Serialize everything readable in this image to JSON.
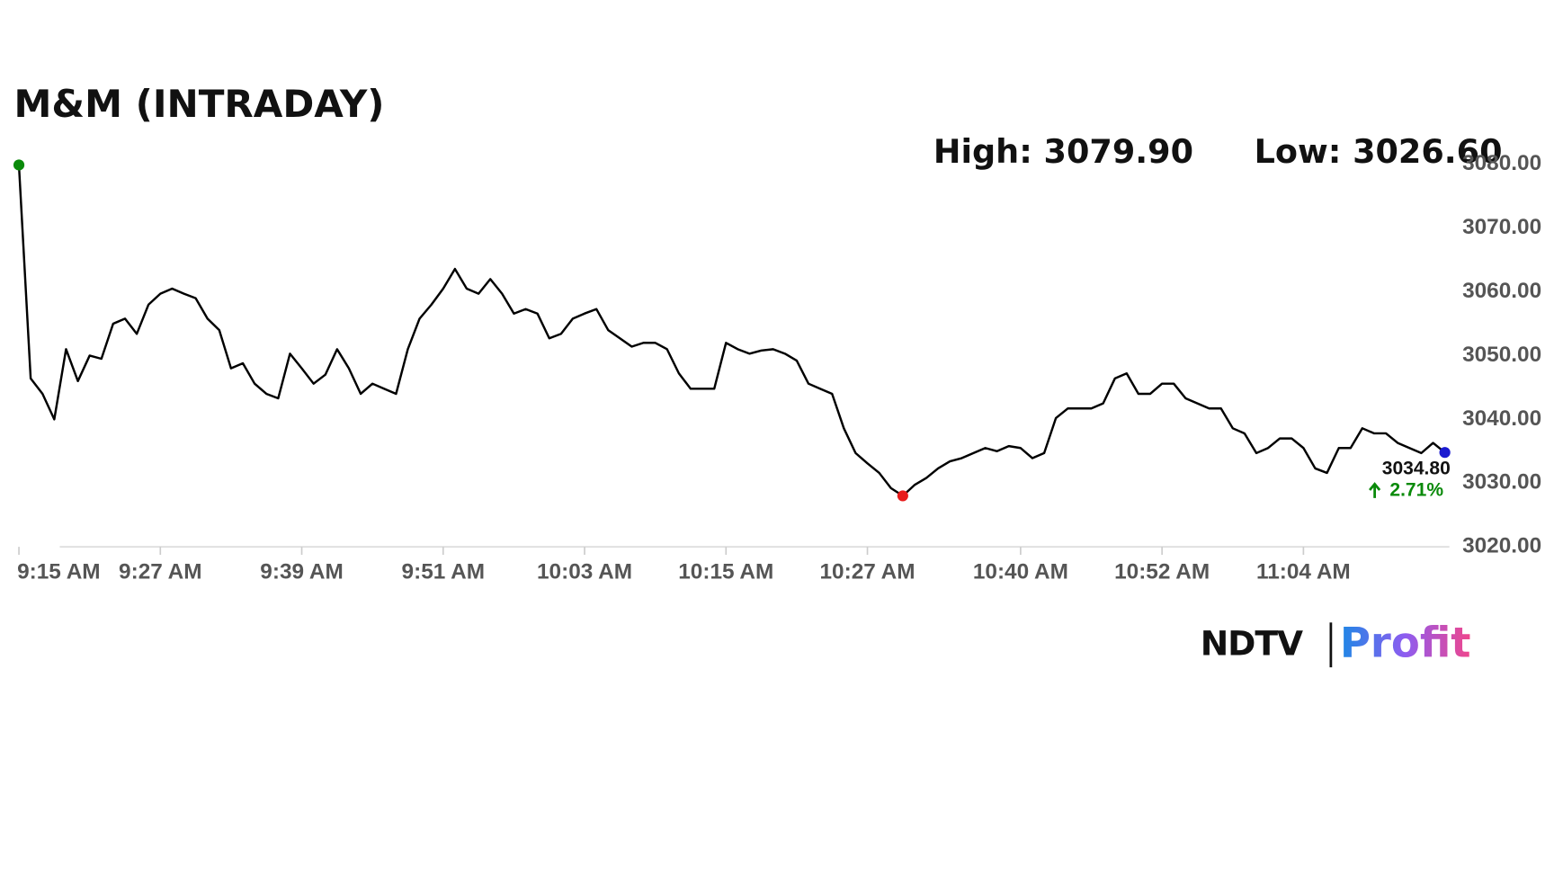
{
  "chart_data": {
    "type": "line",
    "title": "M&M (INTRADAY)",
    "high_label": "High: 3079.90",
    "low_label": "Low: 3026.60",
    "last_price_label": "3034.80",
    "change_label": "2.71%",
    "logo": {
      "left": "NDTV",
      "right": "Profit"
    },
    "color": "#000000",
    "x": [
      "9:15 AM",
      "9:16 AM",
      "9:17 AM",
      "9:18 AM",
      "9:19 AM",
      "9:20 AM",
      "9:21 AM",
      "9:22 AM",
      "9:23 AM",
      "9:24 AM",
      "9:25 AM",
      "9:26 AM",
      "9:27 AM",
      "9:28 AM",
      "9:29 AM",
      "9:30 AM",
      "9:31 AM",
      "9:32 AM",
      "9:33 AM",
      "9:34 AM",
      "9:35 AM",
      "9:36 AM",
      "9:37 AM",
      "9:38 AM",
      "9:39 AM",
      "9:40 AM",
      "9:41 AM",
      "9:42 AM",
      "9:43 AM",
      "9:44 AM",
      "9:45 AM",
      "9:46 AM",
      "9:47 AM",
      "9:48 AM",
      "9:49 AM",
      "9:50 AM",
      "9:51 AM",
      "9:52 AM",
      "9:53 AM",
      "9:54 AM",
      "9:55 AM",
      "9:56 AM",
      "9:57 AM",
      "9:58 AM",
      "9:59 AM",
      "10:00 AM",
      "10:01 AM",
      "10:02 AM",
      "10:03 AM",
      "10:04 AM",
      "10:05 AM",
      "10:06 AM",
      "10:07 AM",
      "10:08 AM",
      "10:09 AM",
      "10:10 AM",
      "10:11 AM",
      "10:12 AM",
      "10:13 AM",
      "10:14 AM",
      "10:15 AM",
      "10:16 AM",
      "10:17 AM",
      "10:18 AM",
      "10:19 AM",
      "10:20 AM",
      "10:21 AM",
      "10:22 AM",
      "10:23 AM",
      "10:24 AM",
      "10:25 AM",
      "10:26 AM",
      "10:27 AM",
      "10:28 AM",
      "10:29 AM",
      "10:30 AM",
      "10:31 AM",
      "10:32 AM",
      "10:33 AM",
      "10:34 AM",
      "10:35 AM",
      "10:36 AM",
      "10:37 AM",
      "10:38 AM",
      "10:39 AM",
      "10:40 AM",
      "10:41 AM",
      "10:42 AM",
      "10:43 AM",
      "10:44 AM",
      "10:45 AM",
      "10:46 AM",
      "10:47 AM",
      "10:48 AM",
      "10:49 AM",
      "10:50 AM",
      "10:51 AM",
      "10:52 AM",
      "10:53 AM",
      "10:54 AM",
      "10:55 AM",
      "10:56 AM",
      "10:57 AM",
      "10:58 AM",
      "10:59 AM",
      "11:00 AM",
      "11:01 AM",
      "11:02 AM",
      "11:03 AM",
      "11:04 AM",
      "11:05 AM",
      "11:06 AM",
      "11:07 AM",
      "11:08 AM",
      "11:09 AM",
      "11:10 AM",
      "11:11 AM",
      "11:12 AM",
      "11:13 AM",
      "11:14 AM",
      "11:15 AM",
      "11:16 AM"
    ],
    "values": [
      3079.9,
      3046.4,
      3044,
      3040,
      3051,
      3046,
      3050,
      3049.5,
      3055,
      3055.8,
      3053.4,
      3058,
      3059.7,
      3060.5,
      3059.7,
      3059,
      3055.8,
      3054,
      3048,
      3048.8,
      3045.6,
      3044,
      3043.3,
      3050.3,
      3048,
      3045.6,
      3047,
      3051,
      3048,
      3044,
      3045.6,
      3044.8,
      3044,
      3051,
      3055.8,
      3058,
      3060.5,
      3063.6,
      3060.5,
      3059.7,
      3062,
      3059.7,
      3056.6,
      3057.3,
      3056.6,
      3052.7,
      3053.4,
      3055.8,
      3056.6,
      3057.3,
      3054,
      3052.7,
      3051.4,
      3052,
      3052,
      3051,
      3047.2,
      3044.8,
      3044.8,
      3044.8,
      3052,
      3051,
      3050.3,
      3050.8,
      3051,
      3050.3,
      3049.2,
      3045.6,
      3044.8,
      3044,
      3038.6,
      3034.7,
      3033.1,
      3031.6,
      3029.2,
      3028,
      3029.7,
      3030.8,
      3032.3,
      3033.4,
      3033.9,
      3034.7,
      3035.5,
      3035,
      3035.8,
      3035.5,
      3033.9,
      3034.7,
      3040.2,
      3041.7,
      3041.7,
      3041.7,
      3042.5,
      3046.4,
      3047.2,
      3044,
      3044,
      3045.6,
      3045.6,
      3043.3,
      3042.5,
      3041.7,
      3041.7,
      3038.6,
      3037.8,
      3034.7,
      3035.5,
      3037,
      3037,
      3035.5,
      3032.3,
      3031.6,
      3035.5,
      3035.5,
      3038.6,
      3037.8,
      3037.8,
      3036.3,
      3035.5,
      3034.7,
      3036.3,
      3034.8
    ],
    "xticks": [
      "9:15 AM",
      "9:27 AM",
      "9:39 AM",
      "9:51 AM",
      "10:03 AM",
      "10:15 AM",
      "10:27 AM",
      "10:40 AM",
      "10:52 AM",
      "11:04 AM"
    ],
    "ylim": [
      3020,
      3080
    ],
    "yticks": [
      {
        "value": 3020,
        "label": "3020.00"
      },
      {
        "value": 3030,
        "label": "3030.00"
      },
      {
        "value": 3040,
        "label": "3040.00"
      },
      {
        "value": 3050,
        "label": "3050.00"
      },
      {
        "value": 3060,
        "label": "3060.00"
      },
      {
        "value": 3070,
        "label": "3070.00"
      },
      {
        "value": 3080,
        "label": "3080.00"
      }
    ],
    "grid": false
  }
}
